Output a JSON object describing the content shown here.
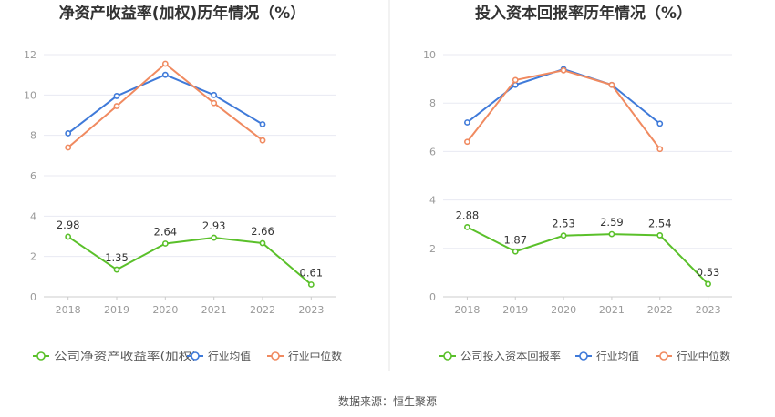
{
  "colors": {
    "company": "#5ac02a",
    "industry_avg": "#3f7ad9",
    "industry_median": "#f08a60",
    "grid": "#e8eaf2",
    "divider": "#e6e6e6"
  },
  "chart_data": [
    {
      "type": "line",
      "title": "净资产收益率(加权)历年情况（%）",
      "categories": [
        "2018",
        "2019",
        "2020",
        "2021",
        "2022",
        "2023"
      ],
      "ylim": [
        0,
        12
      ],
      "yticks": [
        "0",
        "2",
        "4",
        "6",
        "8",
        "10",
        "12"
      ],
      "grid": true,
      "legend_position": "bottom",
      "series": [
        {
          "name": "公司净资产收益率(加权)",
          "values": [
            2.98,
            1.35,
            2.64,
            2.93,
            2.66,
            0.61
          ],
          "labels": [
            "2.98",
            "1.35",
            "2.64",
            "2.93",
            "2.66",
            "0.61"
          ]
        },
        {
          "name": "行业均值",
          "values": [
            8.1,
            9.95,
            11.0,
            10.0,
            8.55,
            null
          ]
        },
        {
          "name": "行业中位数",
          "values": [
            7.4,
            9.45,
            11.55,
            9.6,
            7.75,
            null
          ]
        }
      ]
    },
    {
      "type": "line",
      "title": "投入资本回报率历年情况（%）",
      "categories": [
        "2018",
        "2019",
        "2020",
        "2021",
        "2022",
        "2023"
      ],
      "ylim": [
        0,
        10
      ],
      "yticks": [
        "0",
        "2",
        "4",
        "6",
        "8",
        "10"
      ],
      "grid": true,
      "legend_position": "bottom",
      "series": [
        {
          "name": "公司投入资本回报率",
          "values": [
            2.88,
            1.87,
            2.53,
            2.59,
            2.54,
            0.53
          ],
          "labels": [
            "2.88",
            "1.87",
            "2.53",
            "2.59",
            "2.54",
            "0.53"
          ]
        },
        {
          "name": "行业均值",
          "values": [
            7.2,
            8.75,
            9.4,
            8.75,
            7.15,
            null
          ]
        },
        {
          "name": "行业中位数",
          "values": [
            6.4,
            8.95,
            9.35,
            8.75,
            6.1,
            null
          ]
        }
      ]
    }
  ],
  "footer": {
    "source": "数据来源：恒生聚源"
  }
}
